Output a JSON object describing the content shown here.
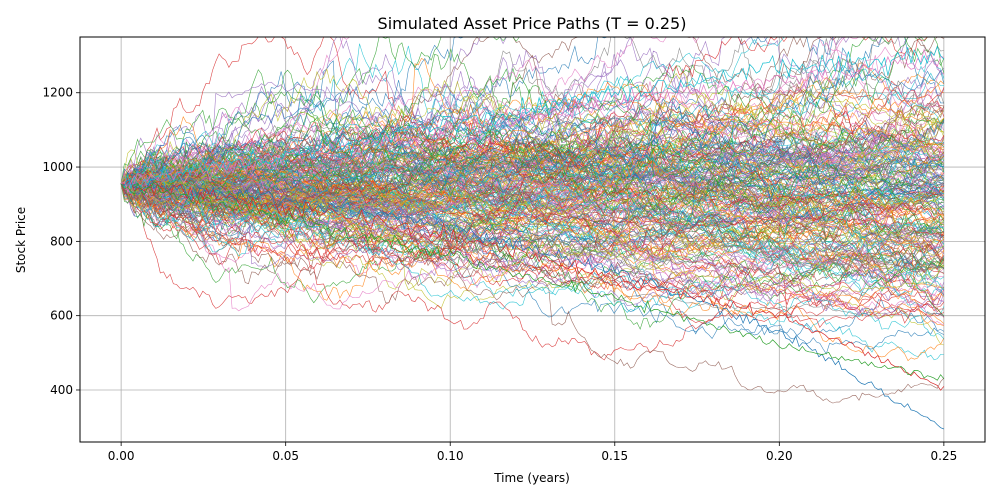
{
  "chart_data": {
    "type": "line",
    "title": "Simulated Asset Price Paths (T = 0.25)",
    "xlabel": "Time (years)",
    "ylabel": "Stock Price",
    "xlim": [
      -0.0125,
      0.2625
    ],
    "ylim": [
      260,
      1350
    ],
    "xticks": [
      0.0,
      0.05,
      0.1,
      0.15,
      0.2,
      0.25
    ],
    "xtick_labels": [
      "0.00",
      "0.05",
      "0.10",
      "0.15",
      "0.20",
      "0.25"
    ],
    "yticks": [
      400,
      600,
      800,
      1000,
      1200
    ],
    "ytick_labels": [
      "400",
      "600",
      "800",
      "1000",
      "1200"
    ],
    "grid": true,
    "legend": "none",
    "start_price": 955,
    "time_horizon": 0.25,
    "num_paths_approx": 1000,
    "num_steps": 252,
    "volatility_approx": 0.3,
    "series_colors": [
      "#1f77b4",
      "#ff7f0e",
      "#2ca02c",
      "#d62728",
      "#9467bd",
      "#8c564b",
      "#e377c2",
      "#7f7f7f",
      "#bcbd22",
      "#17becf"
    ],
    "notable_paths": [
      {
        "x": [
          0,
          0.05,
          0.1,
          0.15,
          0.2,
          0.25
        ],
        "y": [
          955,
          910,
          840,
          720,
          560,
          295
        ]
      },
      {
        "x": [
          0,
          0.05,
          0.1,
          0.15,
          0.2,
          0.25
        ],
        "y": [
          955,
          890,
          820,
          700,
          600,
          410
        ]
      },
      {
        "x": [
          0,
          0.05,
          0.1,
          0.15,
          0.2,
          0.25
        ],
        "y": [
          955,
          1020,
          1100,
          1180,
          1230,
          1295
        ]
      },
      {
        "x": [
          0,
          0.05,
          0.1,
          0.15,
          0.2,
          0.25
        ],
        "y": [
          955,
          1030,
          1120,
          1200,
          1270,
          1290
        ]
      },
      {
        "x": [
          0,
          0.05,
          0.1,
          0.15,
          0.2,
          0.25
        ],
        "y": [
          955,
          860,
          760,
          650,
          520,
          430
        ]
      }
    ]
  }
}
